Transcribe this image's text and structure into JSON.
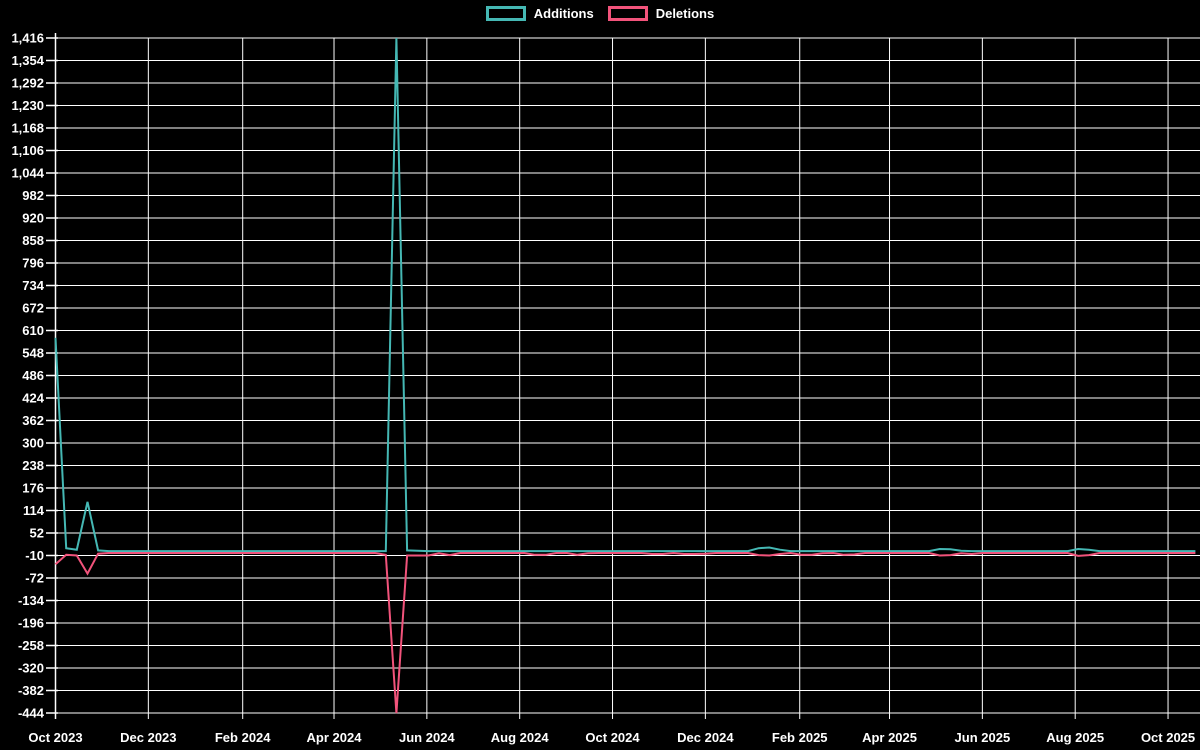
{
  "page": {
    "background_color": "#000000",
    "text_color": "#ffffff"
  },
  "legend": {
    "position": "top-center",
    "items": [
      {
        "label": "Additions",
        "color": "#45b8b4"
      },
      {
        "label": "Deletions",
        "color": "#f2537b"
      }
    ]
  },
  "chart_data": {
    "type": "line",
    "title": "",
    "xlabel": "",
    "ylabel": "",
    "grid": true,
    "background": "#000000",
    "gridline_color": "#ffffff",
    "axis_text_color": "#ffffff",
    "ylim": [
      -444,
      1416
    ],
    "y_tick_step": 62,
    "y_ticks": [
      "1,416",
      "1,354",
      "1,292",
      "1,230",
      "1,168",
      "1,106",
      "1,044",
      "982",
      "920",
      "858",
      "796",
      "734",
      "672",
      "610",
      "548",
      "486",
      "424",
      "362",
      "300",
      "238",
      "176",
      "114",
      "52",
      "-10",
      "-72",
      "-134",
      "-196",
      "-258",
      "-320",
      "-382",
      "-444"
    ],
    "x_domain": [
      "2023-10-01",
      "2025-10-22"
    ],
    "x_ticks": [
      {
        "label": "Oct 2023",
        "date": "2023-10-01"
      },
      {
        "label": "Dec 2023",
        "date": "2023-12-01"
      },
      {
        "label": "Feb 2024",
        "date": "2024-02-01"
      },
      {
        "label": "Apr 2024",
        "date": "2024-04-01"
      },
      {
        "label": "Jun 2024",
        "date": "2024-06-01"
      },
      {
        "label": "Aug 2024",
        "date": "2024-08-01"
      },
      {
        "label": "Oct 2024",
        "date": "2024-10-01"
      },
      {
        "label": "Dec 2024",
        "date": "2024-12-01"
      },
      {
        "label": "Feb 2025",
        "date": "2025-02-01"
      },
      {
        "label": "Apr 2025",
        "date": "2025-04-01"
      },
      {
        "label": "Jun 2025",
        "date": "2025-06-01"
      },
      {
        "label": "Aug 2025",
        "date": "2025-08-01"
      },
      {
        "label": "Oct 2025",
        "date": "2025-10-01"
      }
    ],
    "series": [
      {
        "name": "Additions",
        "color": "#45b8b4",
        "max": 1416
      },
      {
        "name": "Deletions",
        "color": "#f2537b",
        "min": -444
      }
    ],
    "points": [
      [
        "2023-10-01",
        590,
        -34
      ],
      [
        "2023-10-08",
        10,
        -8
      ],
      [
        "2023-10-15",
        6,
        -10
      ],
      [
        "2023-10-22",
        138,
        -60
      ],
      [
        "2023-10-29",
        4,
        -5
      ],
      [
        "2023-11-05",
        2,
        -3
      ],
      [
        "2023-11-12",
        2,
        -3
      ],
      [
        "2023-11-19",
        2,
        -3
      ],
      [
        "2023-11-26",
        2,
        -3
      ],
      [
        "2023-12-03",
        2,
        -3
      ],
      [
        "2023-12-10",
        2,
        -3
      ],
      [
        "2023-12-17",
        2,
        -3
      ],
      [
        "2023-12-24",
        2,
        -3
      ],
      [
        "2023-12-31",
        2,
        -3
      ],
      [
        "2024-01-07",
        2,
        -3
      ],
      [
        "2024-01-14",
        2,
        -3
      ],
      [
        "2024-01-21",
        2,
        -3
      ],
      [
        "2024-01-28",
        2,
        -3
      ],
      [
        "2024-02-04",
        2,
        -3
      ],
      [
        "2024-02-11",
        2,
        -3
      ],
      [
        "2024-02-18",
        2,
        -3
      ],
      [
        "2024-02-25",
        2,
        -3
      ],
      [
        "2024-03-03",
        2,
        -3
      ],
      [
        "2024-03-10",
        2,
        -3
      ],
      [
        "2024-03-17",
        2,
        -3
      ],
      [
        "2024-03-24",
        2,
        -3
      ],
      [
        "2024-03-31",
        2,
        -3
      ],
      [
        "2024-04-07",
        2,
        -3
      ],
      [
        "2024-04-14",
        2,
        -3
      ],
      [
        "2024-04-21",
        2,
        -3
      ],
      [
        "2024-04-28",
        2,
        -3
      ],
      [
        "2024-05-05",
        2,
        -8
      ],
      [
        "2024-05-12",
        1416,
        -444
      ],
      [
        "2024-05-19",
        4,
        -10
      ],
      [
        "2024-05-26",
        3,
        -10
      ],
      [
        "2024-06-02",
        2,
        -10
      ],
      [
        "2024-06-09",
        2,
        -4
      ],
      [
        "2024-06-16",
        2,
        -9
      ],
      [
        "2024-06-23",
        2,
        -3
      ],
      [
        "2024-06-30",
        2,
        -3
      ],
      [
        "2024-07-07",
        2,
        -3
      ],
      [
        "2024-07-14",
        2,
        -3
      ],
      [
        "2024-07-21",
        2,
        -3
      ],
      [
        "2024-07-28",
        2,
        -3
      ],
      [
        "2024-08-04",
        2,
        -3
      ],
      [
        "2024-08-11",
        2,
        -8
      ],
      [
        "2024-08-18",
        2,
        -8
      ],
      [
        "2024-08-25",
        2,
        -3
      ],
      [
        "2024-09-01",
        2,
        -3
      ],
      [
        "2024-09-08",
        2,
        -8
      ],
      [
        "2024-09-15",
        2,
        -4
      ],
      [
        "2024-09-22",
        2,
        -3
      ],
      [
        "2024-09-29",
        2,
        -3
      ],
      [
        "2024-10-06",
        2,
        -3
      ],
      [
        "2024-10-13",
        2,
        -3
      ],
      [
        "2024-10-20",
        2,
        -3
      ],
      [
        "2024-10-27",
        2,
        -6
      ],
      [
        "2024-11-03",
        2,
        -6
      ],
      [
        "2024-11-10",
        2,
        -3
      ],
      [
        "2024-11-17",
        2,
        -6
      ],
      [
        "2024-11-24",
        2,
        -6
      ],
      [
        "2024-12-01",
        2,
        -5
      ],
      [
        "2024-12-08",
        2,
        -3
      ],
      [
        "2024-12-15",
        2,
        -3
      ],
      [
        "2024-12-22",
        2,
        -3
      ],
      [
        "2024-12-29",
        2,
        -3
      ],
      [
        "2025-01-05",
        10,
        -9
      ],
      [
        "2025-01-12",
        12,
        -10
      ],
      [
        "2025-01-19",
        6,
        -6
      ],
      [
        "2025-01-26",
        2,
        -3
      ],
      [
        "2025-02-02",
        2,
        -8
      ],
      [
        "2025-02-09",
        2,
        -8
      ],
      [
        "2025-02-16",
        2,
        -4
      ],
      [
        "2025-02-23",
        2,
        -3
      ],
      [
        "2025-03-02",
        2,
        -8
      ],
      [
        "2025-03-09",
        2,
        -7
      ],
      [
        "2025-03-16",
        2,
        -3
      ],
      [
        "2025-03-23",
        2,
        -3
      ],
      [
        "2025-03-30",
        2,
        -3
      ],
      [
        "2025-04-06",
        2,
        -3
      ],
      [
        "2025-04-13",
        2,
        -3
      ],
      [
        "2025-04-20",
        2,
        -3
      ],
      [
        "2025-04-27",
        2,
        -3
      ],
      [
        "2025-05-04",
        8,
        -10
      ],
      [
        "2025-05-11",
        7,
        -9
      ],
      [
        "2025-05-18",
        3,
        -4
      ],
      [
        "2025-05-25",
        2,
        -6
      ],
      [
        "2025-06-01",
        2,
        -3
      ],
      [
        "2025-06-08",
        2,
        -3
      ],
      [
        "2025-06-15",
        2,
        -3
      ],
      [
        "2025-06-22",
        2,
        -3
      ],
      [
        "2025-06-29",
        2,
        -3
      ],
      [
        "2025-07-06",
        2,
        -3
      ],
      [
        "2025-07-13",
        2,
        -3
      ],
      [
        "2025-07-20",
        2,
        -3
      ],
      [
        "2025-07-27",
        2,
        -3
      ],
      [
        "2025-08-03",
        8,
        -11
      ],
      [
        "2025-08-10",
        6,
        -9
      ],
      [
        "2025-08-17",
        2,
        -3
      ],
      [
        "2025-08-24",
        2,
        -3
      ],
      [
        "2025-08-31",
        2,
        -3
      ],
      [
        "2025-09-07",
        2,
        -3
      ],
      [
        "2025-09-14",
        2,
        -3
      ],
      [
        "2025-09-21",
        2,
        -3
      ],
      [
        "2025-09-28",
        2,
        -3
      ],
      [
        "2025-10-05",
        2,
        -3
      ],
      [
        "2025-10-12",
        2,
        -3
      ],
      [
        "2025-10-19",
        2,
        -3
      ]
    ]
  }
}
